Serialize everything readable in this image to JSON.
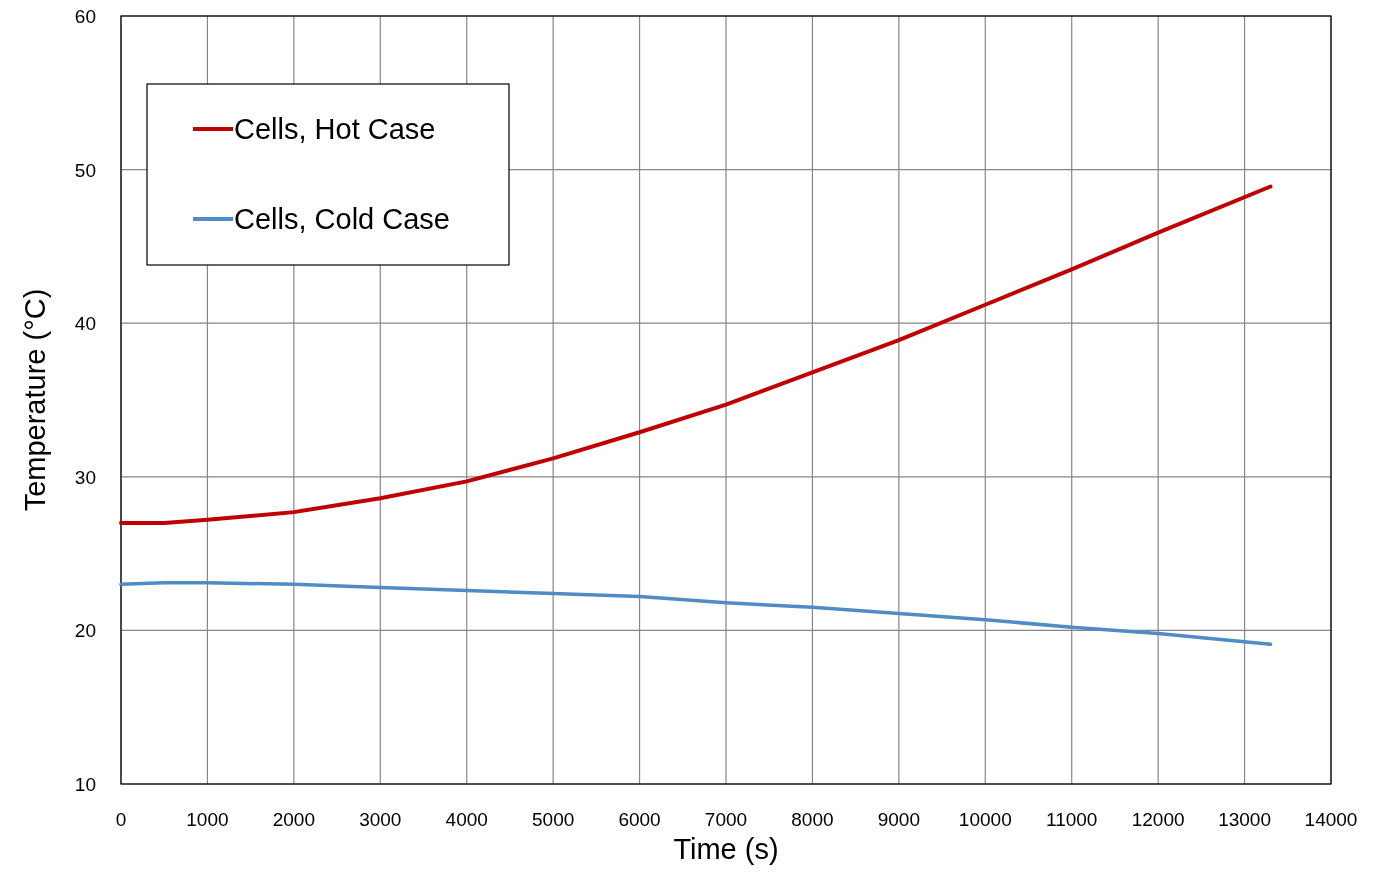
{
  "chart_data": {
    "type": "line",
    "xlabel": "Time (s)",
    "ylabel": "Temperature (°C)",
    "xlim": [
      0,
      14000
    ],
    "xticks": [
      0,
      1000,
      2000,
      3000,
      4000,
      5000,
      6000,
      7000,
      8000,
      9000,
      10000,
      11000,
      12000,
      13000,
      14000
    ],
    "ylim": [
      10,
      60
    ],
    "yticks": [
      10,
      20,
      30,
      40,
      50,
      60
    ],
    "grid": true,
    "legend": "top left",
    "marker": "none",
    "line_style": "solid",
    "x": [
      0,
      500,
      1000,
      2000,
      3000,
      4000,
      5000,
      6000,
      7000,
      8000,
      9000,
      10000,
      11000,
      12000,
      13300
    ],
    "series": [
      {
        "name": "Cells, Hot Case",
        "color": "#c00000",
        "values": [
          27.0,
          27.0,
          27.2,
          27.7,
          28.6,
          29.7,
          31.2,
          32.9,
          34.7,
          36.8,
          38.9,
          41.2,
          43.5,
          45.9,
          48.9
        ]
      },
      {
        "name": "Cells, Cold Case",
        "color": "#4f8bc4",
        "values": [
          23.0,
          23.1,
          23.1,
          23.0,
          22.8,
          22.6,
          22.4,
          22.2,
          21.8,
          21.5,
          21.1,
          20.7,
          20.2,
          19.8,
          19.1
        ]
      }
    ]
  }
}
